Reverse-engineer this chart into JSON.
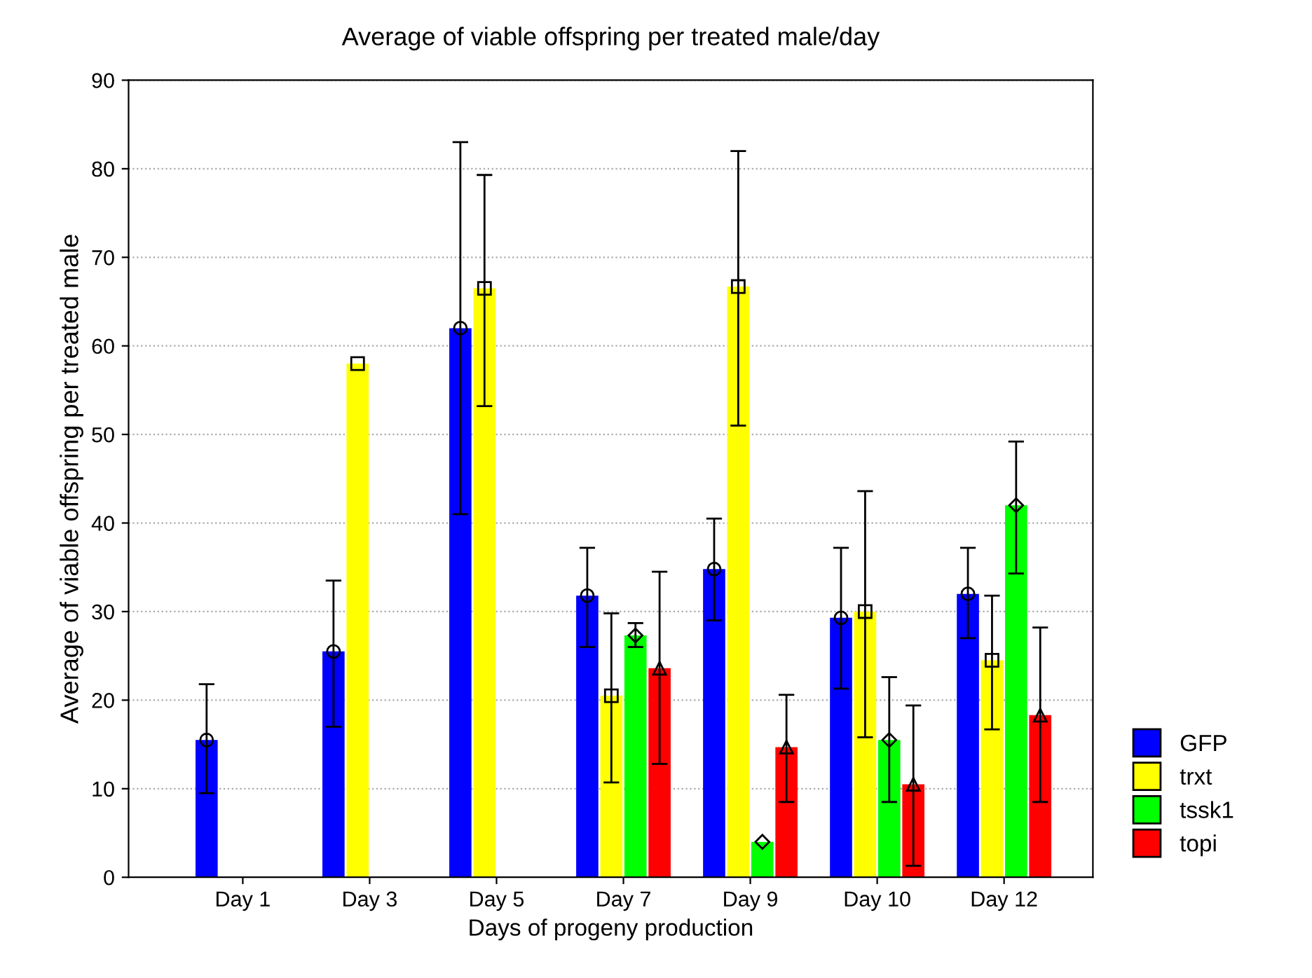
{
  "chart_data": {
    "type": "bar",
    "title": "Average of viable offspring per treated male/day",
    "xlabel": "Days of progeny production",
    "ylabel": "Average of viable offspring per treated male",
    "categories": [
      "Day 1",
      "Day 3",
      "Day 5",
      "Day 7",
      "Day 9",
      "Day 10",
      "Day 12"
    ],
    "series": [
      {
        "name": "GFP",
        "color": "#0000ff",
        "marker": "circle",
        "values": [
          15.5,
          25.5,
          62,
          31.8,
          34.8,
          29.3,
          32
        ],
        "errors": [
          [
            9.5,
            21.8
          ],
          [
            17,
            33.5
          ],
          [
            41,
            83
          ],
          [
            26,
            37.2
          ],
          [
            29,
            40.5
          ],
          [
            21.3,
            37.2
          ],
          [
            27,
            37.2
          ]
        ]
      },
      {
        "name": "trxt",
        "color": "#ffff00",
        "marker": "square",
        "values": [
          null,
          58,
          66.5,
          20.5,
          66.7,
          30,
          24.5
        ],
        "errors": [
          null,
          null,
          [
            53.2,
            79.3
          ],
          [
            10.7,
            29.8
          ],
          [
            51,
            82
          ],
          [
            15.8,
            43.6
          ],
          [
            16.7,
            31.8
          ]
        ]
      },
      {
        "name": "tssk1",
        "color": "#00ff00",
        "marker": "diamond",
        "values": [
          null,
          null,
          null,
          27.3,
          4,
          15.5,
          42
        ],
        "errors": [
          null,
          null,
          null,
          [
            26,
            28.7
          ],
          null,
          [
            8.5,
            22.6
          ],
          [
            34.3,
            49.2
          ]
        ]
      },
      {
        "name": "topi",
        "color": "#ff0000",
        "marker": "triangle",
        "values": [
          null,
          null,
          null,
          23.6,
          14.7,
          10.5,
          18.3
        ],
        "errors": [
          null,
          null,
          null,
          [
            12.8,
            34.5
          ],
          [
            8.5,
            20.6
          ],
          [
            1.3,
            19.4
          ],
          [
            8.5,
            28.2
          ]
        ]
      }
    ],
    "ylim": [
      0,
      90
    ],
    "yticks": [
      0,
      10,
      20,
      30,
      40,
      50,
      60,
      70,
      80,
      90
    ],
    "grid": "y",
    "legend": "bottom right"
  }
}
